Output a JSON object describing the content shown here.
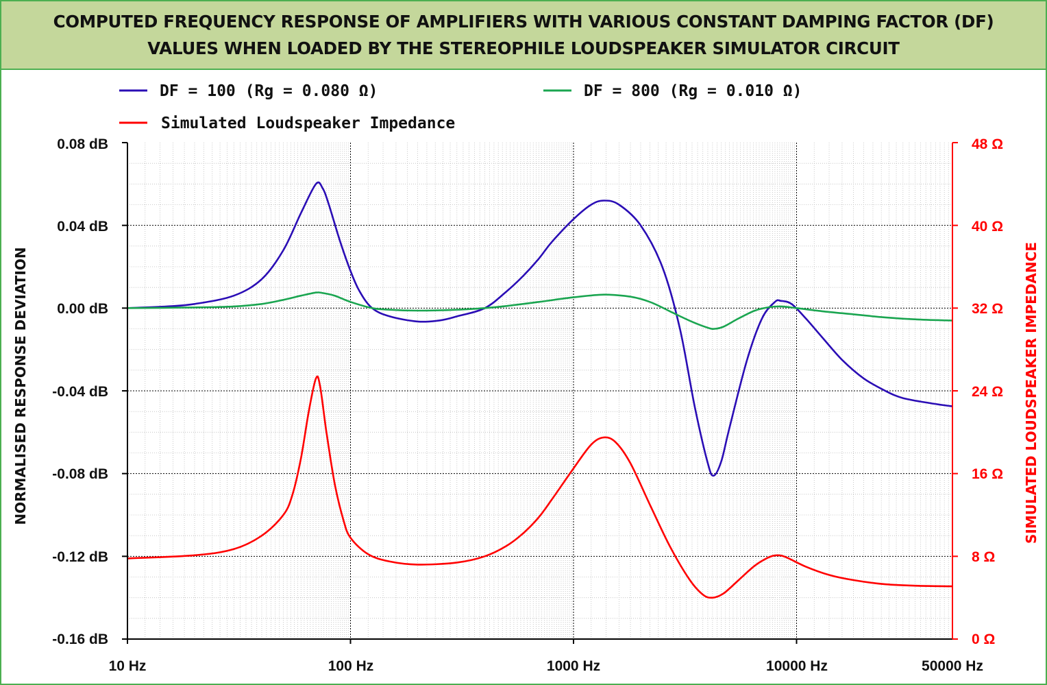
{
  "title": {
    "line1": "COMPUTED FREQUENCY RESPONSE OF AMPLIFIERS WITH VARIOUS CONSTANT DAMPING FACTOR (DF)",
    "line2": "VALUES WHEN LOADED BY THE STEREOPHILE LOUDSPEAKER SIMULATOR CIRCUIT"
  },
  "legend": [
    {
      "label": "DF = 100 (Rg = 0.080 Ω)",
      "color": "#2a0db5"
    },
    {
      "label": "DF = 800 (Rg = 0.010 Ω)",
      "color": "#1aa550"
    },
    {
      "label": "Simulated Loudspeaker Impedance",
      "color": "#ff0000"
    }
  ],
  "axes": {
    "ylabel_left": "NORMALISED RESPONSE DEVIATION",
    "ylabel_right": "SIMULATED LOUDSPEAKER IMPEDANCE",
    "y_left_ticks": [
      "0.08 dB",
      "0.04 dB",
      "0.00 dB",
      "-0.04 dB",
      "-0.08 dB",
      "-0.12 dB",
      "-0.16 dB"
    ],
    "y_right_ticks": [
      "48 Ω",
      "40 Ω",
      "32 Ω",
      "24 Ω",
      "16 Ω",
      "8 Ω",
      "0 Ω"
    ],
    "x_ticks": [
      "10 Hz",
      "100 Hz",
      "1000 Hz",
      "10000 Hz",
      "50000 Hz"
    ]
  },
  "chart_data": {
    "type": "line",
    "x_scale": "log",
    "xlim": [
      10,
      50000
    ],
    "ylim_left": [
      -0.16,
      0.08
    ],
    "ylim_right": [
      0,
      48
    ],
    "grid": true,
    "legend_position": "top",
    "series": [
      {
        "name": "DF = 100 (Rg = 0.080 Ω)",
        "axis": "left",
        "color": "#2a0db5",
        "points": [
          [
            10,
            0.0
          ],
          [
            15,
            0.0008
          ],
          [
            20,
            0.002
          ],
          [
            30,
            0.006
          ],
          [
            40,
            0.014
          ],
          [
            50,
            0.028
          ],
          [
            60,
            0.046
          ],
          [
            70,
            0.06
          ],
          [
            75,
            0.058
          ],
          [
            80,
            0.05
          ],
          [
            90,
            0.032
          ],
          [
            100,
            0.018
          ],
          [
            110,
            0.008
          ],
          [
            125,
            0.0
          ],
          [
            150,
            -0.004
          ],
          [
            200,
            -0.0065
          ],
          [
            250,
            -0.006
          ],
          [
            300,
            -0.004
          ],
          [
            400,
            0.0
          ],
          [
            500,
            0.008
          ],
          [
            600,
            0.016
          ],
          [
            700,
            0.024
          ],
          [
            800,
            0.032
          ],
          [
            1000,
            0.043
          ],
          [
            1200,
            0.05
          ],
          [
            1370,
            0.052
          ],
          [
            1600,
            0.05
          ],
          [
            2000,
            0.04
          ],
          [
            2500,
            0.02
          ],
          [
            3000,
            -0.01
          ],
          [
            3500,
            -0.048
          ],
          [
            4000,
            -0.075
          ],
          [
            4250,
            -0.081
          ],
          [
            4600,
            -0.074
          ],
          [
            5000,
            -0.058
          ],
          [
            6000,
            -0.025
          ],
          [
            7000,
            -0.005
          ],
          [
            8000,
            0.003
          ],
          [
            8500,
            0.0035
          ],
          [
            9500,
            0.002
          ],
          [
            11000,
            -0.005
          ],
          [
            13000,
            -0.014
          ],
          [
            16000,
            -0.025
          ],
          [
            20000,
            -0.034
          ],
          [
            25000,
            -0.04
          ],
          [
            30000,
            -0.0435
          ],
          [
            40000,
            -0.046
          ],
          [
            50000,
            -0.0475
          ]
        ]
      },
      {
        "name": "DF = 800 (Rg = 0.010 Ω)",
        "axis": "left",
        "color": "#1aa550",
        "points": [
          [
            10,
            0.0
          ],
          [
            20,
            0.0003
          ],
          [
            30,
            0.0008
          ],
          [
            40,
            0.002
          ],
          [
            50,
            0.004
          ],
          [
            60,
            0.006
          ],
          [
            70,
            0.0075
          ],
          [
            75,
            0.0073
          ],
          [
            85,
            0.006
          ],
          [
            100,
            0.003
          ],
          [
            125,
            0.0
          ],
          [
            150,
            -0.0008
          ],
          [
            200,
            -0.0012
          ],
          [
            300,
            -0.0008
          ],
          [
            400,
            0.0
          ],
          [
            500,
            0.001
          ],
          [
            700,
            0.003
          ],
          [
            1000,
            0.0052
          ],
          [
            1370,
            0.0065
          ],
          [
            1800,
            0.0055
          ],
          [
            2200,
            0.003
          ],
          [
            2700,
            -0.0015
          ],
          [
            3300,
            -0.006
          ],
          [
            4000,
            -0.0095
          ],
          [
            4300,
            -0.01
          ],
          [
            4700,
            -0.009
          ],
          [
            5500,
            -0.005
          ],
          [
            6500,
            -0.0012
          ],
          [
            7500,
            0.0004
          ],
          [
            8500,
            0.0008
          ],
          [
            10000,
            0.0
          ],
          [
            13000,
            -0.0015
          ],
          [
            18000,
            -0.003
          ],
          [
            25000,
            -0.0045
          ],
          [
            35000,
            -0.0055
          ],
          [
            50000,
            -0.006
          ]
        ]
      },
      {
        "name": "Simulated Loudspeaker Impedance",
        "axis": "right",
        "color": "#ff0000",
        "points": [
          [
            10,
            7.8
          ],
          [
            20,
            8.1
          ],
          [
            30,
            8.7
          ],
          [
            40,
            10.0
          ],
          [
            50,
            12.0
          ],
          [
            55,
            14.0
          ],
          [
            60,
            17.5
          ],
          [
            65,
            22.0
          ],
          [
            70,
            25.2
          ],
          [
            73,
            24.5
          ],
          [
            78,
            20.0
          ],
          [
            85,
            15.0
          ],
          [
            93,
            11.5
          ],
          [
            100,
            9.8
          ],
          [
            120,
            8.2
          ],
          [
            150,
            7.5
          ],
          [
            200,
            7.2
          ],
          [
            300,
            7.4
          ],
          [
            400,
            8.0
          ],
          [
            500,
            9.0
          ],
          [
            600,
            10.3
          ],
          [
            700,
            11.8
          ],
          [
            800,
            13.5
          ],
          [
            1000,
            16.5
          ],
          [
            1200,
            18.8
          ],
          [
            1370,
            19.5
          ],
          [
            1550,
            19.0
          ],
          [
            1800,
            17.0
          ],
          [
            2200,
            13.0
          ],
          [
            2700,
            9.0
          ],
          [
            3300,
            5.8
          ],
          [
            3800,
            4.3
          ],
          [
            4200,
            4.0
          ],
          [
            4700,
            4.4
          ],
          [
            5500,
            5.7
          ],
          [
            6500,
            7.1
          ],
          [
            7500,
            7.9
          ],
          [
            8200,
            8.1
          ],
          [
            9000,
            7.9
          ],
          [
            11000,
            7.0
          ],
          [
            14000,
            6.2
          ],
          [
            18000,
            5.7
          ],
          [
            25000,
            5.3
          ],
          [
            35000,
            5.15
          ],
          [
            50000,
            5.1
          ]
        ]
      }
    ]
  }
}
